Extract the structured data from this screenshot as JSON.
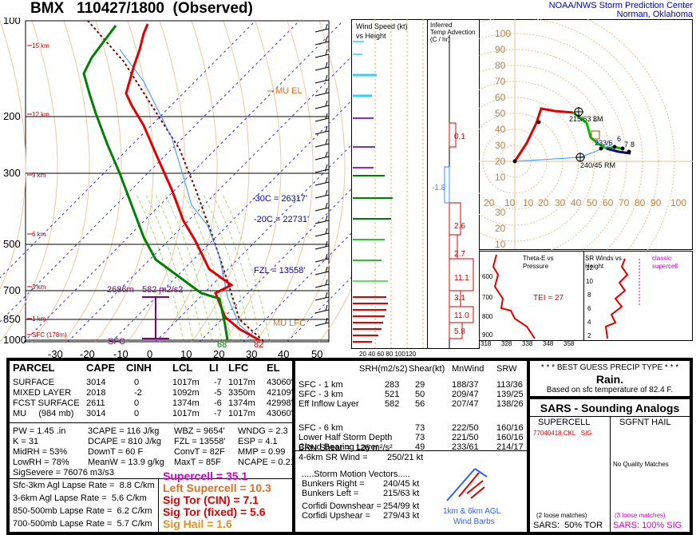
{
  "header": {
    "station": "BMX",
    "datetime": "110427/1800",
    "mode": "(Observed)",
    "org": "NOAA/NWS Storm Prediction Center",
    "loc": "Norman, Oklahoma"
  },
  "skewt": {
    "p_labels": [
      "100",
      "200",
      "300",
      "500",
      "700",
      "850",
      "1000"
    ],
    "t_labels": [
      "-30",
      "-20",
      "-10",
      "0",
      "10",
      "20",
      "30",
      "40",
      "50"
    ],
    "h_labels": [
      "15 km",
      "12 km",
      "9 km",
      "6 km",
      "3 km",
      "1 km",
      "SFC (178m)"
    ],
    "annot": {
      "mu_el": "MU EL",
      "mu_lfc": "MU LFC",
      "fzl": "FZL = 13558'",
      "m30": "-30C = 26317'",
      "m20": "-20C = 22731'",
      "eff_top": "2686m",
      "eff_mid": "582 m2/s2",
      "sfc": "SFC",
      "td_sfc": "68",
      "t_sfc": "82"
    }
  },
  "wind_panel": {
    "title1": "Wind Speed (kt)",
    "title2": "vs Height",
    "xlabels": "20 40 60 80 100120"
  },
  "adv_panel": {
    "title1": "Inferred",
    "title2": "Temp Advection",
    "title3": "(C / hr)",
    "values": [
      "0.1",
      "-1.8",
      "2.6",
      "2.7",
      "11.1",
      "3.1",
      "11.0",
      "5.8"
    ]
  },
  "hodo": {
    "rings": [
      "100",
      "90",
      "80",
      "70",
      "60",
      "50",
      "40",
      "30",
      "20",
      "10"
    ],
    "xlabels": [
      "20",
      "10",
      "10",
      "20",
      "30",
      "40",
      "50",
      "60",
      "70",
      "80",
      "90",
      "100"
    ],
    "ylabels": [
      "30",
      "20",
      "10"
    ],
    "lm": "215/63 LM",
    "rm": "240/45 RM",
    "pts": [
      "3",
      "6",
      "7",
      "8",
      "1",
      "2"
    ],
    "p_233": "233/6"
  },
  "theta_panel": {
    "title1": "Theta-E vs",
    "title2": "Pressure",
    "tei": "TEI = 27",
    "plev": [
      "600",
      "700",
      "800",
      "900"
    ],
    "xlabels": [
      "318",
      "328",
      "338",
      "348",
      "358"
    ]
  },
  "srw_panel": {
    "title1": "SR Winds vs",
    "title2": "Height",
    "cls1": "classic",
    "cls2": "supercell",
    "ylabels": [
      "12",
      "10",
      "8",
      "6",
      "4",
      "2"
    ]
  },
  "parcel": {
    "cols": [
      "PARCEL",
      "CAPE",
      "CINH",
      "LCL",
      "LI",
      "LFC",
      "EL"
    ],
    "rows": [
      [
        "SURFACE",
        "3014",
        "0",
        "1017m",
        "-7",
        "1017m",
        "43060'"
      ],
      [
        "MIXED LAYER",
        "2018",
        "-2",
        "1092m",
        "-5",
        "3350m",
        "42109'"
      ],
      [
        "FCST SURFACE",
        "2611",
        "0",
        "1374m",
        "-6",
        "1374m",
        "42998'"
      ],
      [
        "MU     (984 mb)",
        "3014",
        "0",
        "1017m",
        "-7",
        "1017m",
        "43060'"
      ]
    ]
  },
  "indices": [
    [
      "PW = 1.45 .in",
      "3CAPE = 116 J/kg",
      "WBZ = 9654'",
      "WNDG = 2.3"
    ],
    [
      "K = 31",
      "DCAPE = 810 J/kg",
      "FZL = 13558'",
      "ESP = 4.1"
    ],
    [
      "MidRH = 53%",
      "DownT = 60 F",
      "ConvT = 82F",
      "MMP = 0.99"
    ],
    [
      "LowRH = 78%",
      "MeanW = 13.9 g/kg",
      "MaxT = 85F",
      "NCAPE = 0.21"
    ]
  ],
  "sigsevere": "SigSevere = 76076 m3/s3",
  "lapse": [
    "Sfc-3km Agl Lapse Rate =  8.8 C/km",
    "3-6km Agl Lapse Rate =  5.6 C/km",
    "850-500mb Lapse Rate =  6.2 C/km",
    "700-500mb Lapse Rate =  5.7 C/km"
  ],
  "composites": [
    {
      "label": "Supercell = 35.1",
      "color": "#d000d0"
    },
    {
      "label": "Left Supercell = 10.3",
      "color": "#e07020"
    },
    {
      "label": "Sig Tor (CIN) = 7.1",
      "color": "#e00000"
    },
    {
      "label": "Sig Tor (fixed) = 5.6",
      "color": "#e00000"
    },
    {
      "label": "Sig Hail = 1.6",
      "color": "#e09020"
    }
  ],
  "kin": {
    "cols": [
      "SRH(m2/s2)",
      "Shear(kt)",
      "MnWind",
      "SRW"
    ],
    "rows": [
      [
        "SFC - 1 km",
        "283",
        "29",
        "188/37",
        "113/36"
      ],
      [
        "SFC - 3 km",
        "521",
        "50",
        "209/47",
        "139/25"
      ],
      [
        "Eff Inflow Layer",
        "582",
        "56",
        "207/47",
        "138/26"
      ],
      [
        "SFC - 6 km",
        "",
        "73",
        "222/50",
        "160/16"
      ],
      [
        "Lower Half Storm Depth",
        "",
        "73",
        "221/50",
        "160/16"
      ],
      [
        "Cloud Bearing Layer",
        "",
        "49",
        "233/61",
        "214/17"
      ]
    ],
    "brn": "BRN Shear =  126 m²/s²",
    "srw46": "4-6km SR Wind =        250/21 kt",
    "smv": ".....Storm Motion Vectors.....",
    "bunk": [
      [
        "Bunkers Right =",
        "240/45 kt"
      ],
      [
        "Bunkers Left =",
        "215/63 kt"
      ]
    ],
    "corf": [
      [
        "Corfidi Downshear =",
        "254/99 kt"
      ],
      [
        "Corfidi Upshear =",
        "279/43 kt"
      ]
    ],
    "barb1": "1km & 6km AGL",
    "barb2": "Wind Barbs"
  },
  "precip": {
    "title": "* * * BEST GUESS PRECIP TYPE * * *",
    "type": "Rain.",
    "basis": "Based on sfc temperature of 82.4 F."
  },
  "sars": {
    "title": "SARS - Sounding Analogs",
    "h1": "SUPERCELL",
    "h2": "SGFNT HAIL",
    "match": "77040418.CKL   SIG",
    "noq": "No Quality Matches",
    "loose1": "(2 loose matches)",
    "loose2": "(3 loose matches)",
    "s1": "SARS:  50% TOR",
    "s2": "SARS: 100% SIG"
  }
}
